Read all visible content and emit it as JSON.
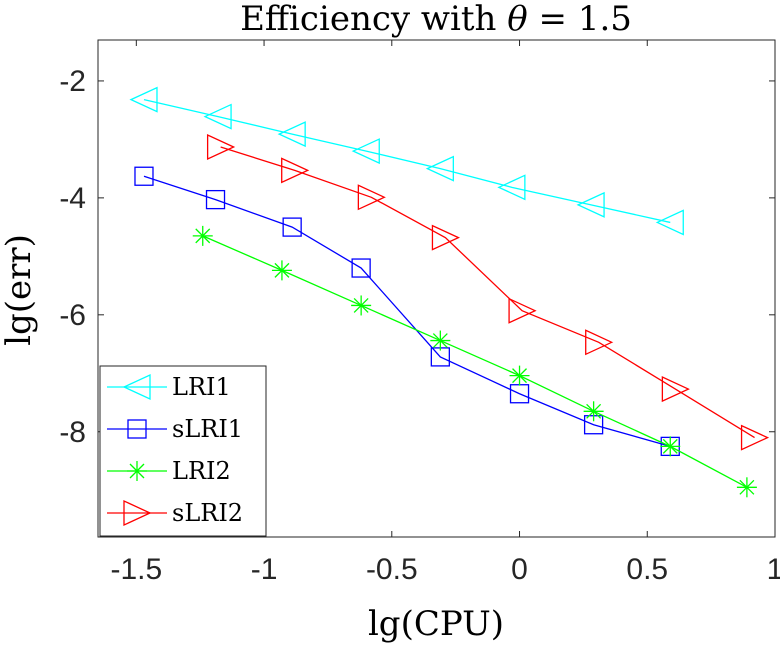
{
  "chart_data": {
    "type": "line",
    "title": "Efficiency with θ = 1.5",
    "title_parts": {
      "prefix": "Efficiency with ",
      "symbol": "θ",
      "suffix": " = 1.5"
    },
    "xlabel": "lg(CPU)",
    "ylabel": "lg(err)",
    "xlim": [
      -1.65,
      1.0
    ],
    "ylim": [
      -9.8,
      -1.3
    ],
    "xticks": [
      -1.5,
      -1.0,
      -0.5,
      0,
      0.5,
      1.0
    ],
    "xtick_labels": [
      "-1.5",
      "-1",
      "-0.5",
      "0",
      "0.5",
      "1"
    ],
    "yticks": [
      -2,
      -4,
      -6,
      -8
    ],
    "ytick_labels": [
      "-2",
      "-4",
      "-6",
      "-8"
    ],
    "grid": false,
    "legend_position": "bottom-left",
    "series": [
      {
        "name": "LRI1",
        "color": "#00FFFF",
        "marker": "triangle-left",
        "x": [
          -1.47,
          -1.18,
          -0.89,
          -0.6,
          -0.31,
          -0.03,
          0.28,
          0.59
        ],
        "y": [
          -2.32,
          -2.61,
          -2.91,
          -3.2,
          -3.5,
          -3.82,
          -4.12,
          -4.42
        ]
      },
      {
        "name": "sLRI1",
        "color": "#0000FF",
        "marker": "square",
        "x": [
          -1.47,
          -1.19,
          -0.89,
          -0.62,
          -0.31,
          0.0,
          0.29,
          0.59
        ],
        "y": [
          -3.63,
          -4.03,
          -4.5,
          -5.2,
          -6.72,
          -7.35,
          -7.88,
          -8.25
        ]
      },
      {
        "name": "LRI2",
        "color": "#00FF00",
        "marker": "asterisk",
        "x": [
          -1.24,
          -0.93,
          -0.62,
          -0.31,
          0.0,
          0.29,
          0.59,
          0.89
        ],
        "y": [
          -4.65,
          -5.24,
          -5.84,
          -6.44,
          -7.04,
          -7.65,
          -8.25,
          -8.95
        ]
      },
      {
        "name": "sLRI2",
        "color": "#FF0000",
        "marker": "triangle-right",
        "x": [
          -1.17,
          -0.88,
          -0.58,
          -0.29,
          0.01,
          0.31,
          0.61,
          0.92
        ],
        "y": [
          -3.13,
          -3.53,
          -3.99,
          -4.68,
          -5.93,
          -6.47,
          -7.27,
          -8.1
        ]
      }
    ]
  }
}
